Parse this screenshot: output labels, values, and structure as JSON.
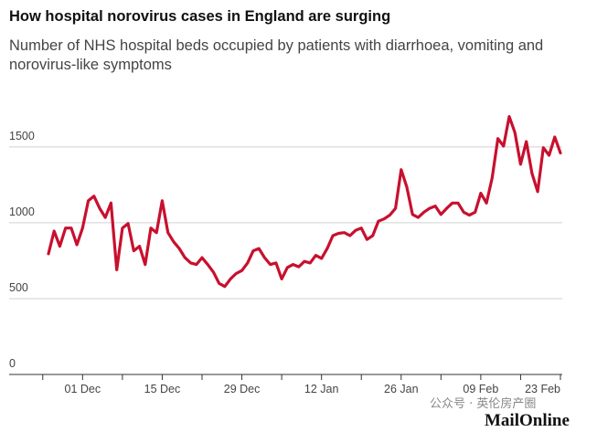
{
  "chart_data": {
    "type": "line",
    "title": "How hospital norovirus cases in England are surging",
    "subtitle": "Number of NHS hospital beds occupied by patients with diarrhoea, vomiting and norovirus-like symptoms",
    "categories": [
      null,
      null,
      null,
      null,
      null,
      null,
      "01 Dec",
      null,
      null,
      null,
      null,
      null,
      null,
      null,
      null,
      null,
      null,
      null,
      null,
      null,
      "15 Dec",
      null,
      null,
      null,
      null,
      null,
      null,
      null,
      null,
      null,
      null,
      null,
      null,
      null,
      "29 Dec",
      null,
      null,
      null,
      null,
      null,
      null,
      null,
      null,
      null,
      null,
      null,
      null,
      null,
      "12 Jan",
      null,
      null,
      null,
      null,
      null,
      null,
      null,
      null,
      null,
      null,
      null,
      null,
      null,
      "26 Jan",
      null,
      null,
      null,
      null,
      null,
      null,
      null,
      null,
      null,
      null,
      null,
      null,
      null,
      "09 Feb",
      null,
      null,
      null,
      null,
      null,
      null,
      null,
      null,
      null,
      null,
      null,
      null,
      null,
      "23 Feb"
    ],
    "series": [
      {
        "name": "Beds occupied",
        "color": "#c8102e",
        "values": [
          795,
          945,
          845,
          965,
          965,
          855,
          965,
          1145,
          1175,
          1095,
          1035,
          1130,
          690,
          965,
          995,
          815,
          845,
          725,
          965,
          935,
          1145,
          935,
          875,
          830,
          770,
          735,
          725,
          770,
          725,
          675,
          600,
          580,
          630,
          665,
          685,
          735,
          815,
          830,
          770,
          725,
          735,
          630,
          705,
          725,
          710,
          745,
          735,
          785,
          765,
          830,
          915,
          930,
          935,
          915,
          950,
          965,
          890,
          915,
          1010,
          1025,
          1050,
          1095,
          1350,
          1235,
          1055,
          1035,
          1070,
          1095,
          1110,
          1055,
          1095,
          1130,
          1130,
          1070,
          1050,
          1070,
          1195,
          1130,
          1295,
          1555,
          1505,
          1700,
          1595,
          1385,
          1535,
          1325,
          1205,
          1495,
          1445,
          1565,
          1460
        ]
      }
    ],
    "ylim": [
      0,
      1800
    ],
    "yticks": [
      0,
      500,
      1000,
      1500
    ],
    "grid": true,
    "watermark": "公众号 · 英伦房产圈",
    "source": "MailOnline"
  }
}
